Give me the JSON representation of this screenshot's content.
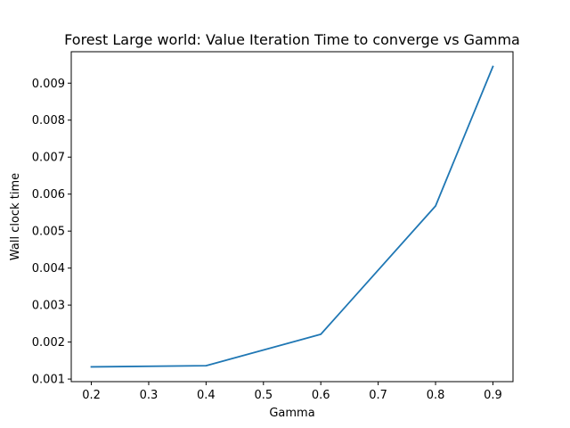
{
  "chart_data": {
    "type": "line",
    "title": "Forest Large world: Value Iteration Time to converge vs Gamma",
    "xlabel": "Gamma",
    "ylabel": "Wall clock time",
    "x": [
      0.2,
      0.4,
      0.6,
      0.8,
      0.9
    ],
    "series": [
      {
        "values": [
          0.00133,
          0.00136,
          0.00221,
          0.00568,
          0.00945
        ],
        "color": "#1f77b4"
      }
    ],
    "xlim": [
      0.165,
      0.935
    ],
    "ylim": [
      0.00093,
      0.00985
    ],
    "xticks": [
      "0.2",
      "0.3",
      "0.4",
      "0.5",
      "0.6",
      "0.7",
      "0.8",
      "0.9"
    ],
    "yticks": [
      "0.001",
      "0.002",
      "0.003",
      "0.004",
      "0.005",
      "0.006",
      "0.007",
      "0.008",
      "0.009"
    ],
    "grid": false,
    "legend": "none"
  }
}
